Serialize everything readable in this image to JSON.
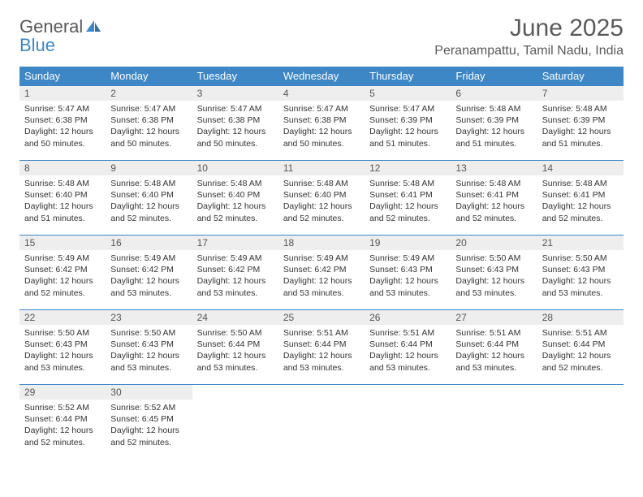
{
  "logo": {
    "word1": "General",
    "word2": "Blue"
  },
  "colors": {
    "accent": "#3d87c7",
    "header_bg": "#3d87c7",
    "header_text": "#ffffff",
    "daynum_bg": "#eeeeee",
    "text": "#333333",
    "muted": "#5a5a5a"
  },
  "title": "June 2025",
  "location": "Peranampattu, Tamil Nadu, India",
  "weekdays": [
    "Sunday",
    "Monday",
    "Tuesday",
    "Wednesday",
    "Thursday",
    "Friday",
    "Saturday"
  ],
  "layout": {
    "first_weekday_index": 0,
    "days_in_month": 30,
    "rows": 5,
    "cols": 7
  },
  "days": [
    {
      "n": 1,
      "sunrise": "5:47 AM",
      "sunset": "6:38 PM",
      "dl_h": 12,
      "dl_m": 50
    },
    {
      "n": 2,
      "sunrise": "5:47 AM",
      "sunset": "6:38 PM",
      "dl_h": 12,
      "dl_m": 50
    },
    {
      "n": 3,
      "sunrise": "5:47 AM",
      "sunset": "6:38 PM",
      "dl_h": 12,
      "dl_m": 50
    },
    {
      "n": 4,
      "sunrise": "5:47 AM",
      "sunset": "6:38 PM",
      "dl_h": 12,
      "dl_m": 50
    },
    {
      "n": 5,
      "sunrise": "5:47 AM",
      "sunset": "6:39 PM",
      "dl_h": 12,
      "dl_m": 51
    },
    {
      "n": 6,
      "sunrise": "5:48 AM",
      "sunset": "6:39 PM",
      "dl_h": 12,
      "dl_m": 51
    },
    {
      "n": 7,
      "sunrise": "5:48 AM",
      "sunset": "6:39 PM",
      "dl_h": 12,
      "dl_m": 51
    },
    {
      "n": 8,
      "sunrise": "5:48 AM",
      "sunset": "6:40 PM",
      "dl_h": 12,
      "dl_m": 51
    },
    {
      "n": 9,
      "sunrise": "5:48 AM",
      "sunset": "6:40 PM",
      "dl_h": 12,
      "dl_m": 52
    },
    {
      "n": 10,
      "sunrise": "5:48 AM",
      "sunset": "6:40 PM",
      "dl_h": 12,
      "dl_m": 52
    },
    {
      "n": 11,
      "sunrise": "5:48 AM",
      "sunset": "6:40 PM",
      "dl_h": 12,
      "dl_m": 52
    },
    {
      "n": 12,
      "sunrise": "5:48 AM",
      "sunset": "6:41 PM",
      "dl_h": 12,
      "dl_m": 52
    },
    {
      "n": 13,
      "sunrise": "5:48 AM",
      "sunset": "6:41 PM",
      "dl_h": 12,
      "dl_m": 52
    },
    {
      "n": 14,
      "sunrise": "5:48 AM",
      "sunset": "6:41 PM",
      "dl_h": 12,
      "dl_m": 52
    },
    {
      "n": 15,
      "sunrise": "5:49 AM",
      "sunset": "6:42 PM",
      "dl_h": 12,
      "dl_m": 52
    },
    {
      "n": 16,
      "sunrise": "5:49 AM",
      "sunset": "6:42 PM",
      "dl_h": 12,
      "dl_m": 53
    },
    {
      "n": 17,
      "sunrise": "5:49 AM",
      "sunset": "6:42 PM",
      "dl_h": 12,
      "dl_m": 53
    },
    {
      "n": 18,
      "sunrise": "5:49 AM",
      "sunset": "6:42 PM",
      "dl_h": 12,
      "dl_m": 53
    },
    {
      "n": 19,
      "sunrise": "5:49 AM",
      "sunset": "6:43 PM",
      "dl_h": 12,
      "dl_m": 53
    },
    {
      "n": 20,
      "sunrise": "5:50 AM",
      "sunset": "6:43 PM",
      "dl_h": 12,
      "dl_m": 53
    },
    {
      "n": 21,
      "sunrise": "5:50 AM",
      "sunset": "6:43 PM",
      "dl_h": 12,
      "dl_m": 53
    },
    {
      "n": 22,
      "sunrise": "5:50 AM",
      "sunset": "6:43 PM",
      "dl_h": 12,
      "dl_m": 53
    },
    {
      "n": 23,
      "sunrise": "5:50 AM",
      "sunset": "6:43 PM",
      "dl_h": 12,
      "dl_m": 53
    },
    {
      "n": 24,
      "sunrise": "5:50 AM",
      "sunset": "6:44 PM",
      "dl_h": 12,
      "dl_m": 53
    },
    {
      "n": 25,
      "sunrise": "5:51 AM",
      "sunset": "6:44 PM",
      "dl_h": 12,
      "dl_m": 53
    },
    {
      "n": 26,
      "sunrise": "5:51 AM",
      "sunset": "6:44 PM",
      "dl_h": 12,
      "dl_m": 53
    },
    {
      "n": 27,
      "sunrise": "5:51 AM",
      "sunset": "6:44 PM",
      "dl_h": 12,
      "dl_m": 53
    },
    {
      "n": 28,
      "sunrise": "5:51 AM",
      "sunset": "6:44 PM",
      "dl_h": 12,
      "dl_m": 52
    },
    {
      "n": 29,
      "sunrise": "5:52 AM",
      "sunset": "6:44 PM",
      "dl_h": 12,
      "dl_m": 52
    },
    {
      "n": 30,
      "sunrise": "5:52 AM",
      "sunset": "6:45 PM",
      "dl_h": 12,
      "dl_m": 52
    }
  ],
  "labels": {
    "sunrise": "Sunrise:",
    "sunset": "Sunset:",
    "daylight_prefix": "Daylight:",
    "hours_word": "hours",
    "and_word": "and",
    "minutes_word": "minutes."
  }
}
